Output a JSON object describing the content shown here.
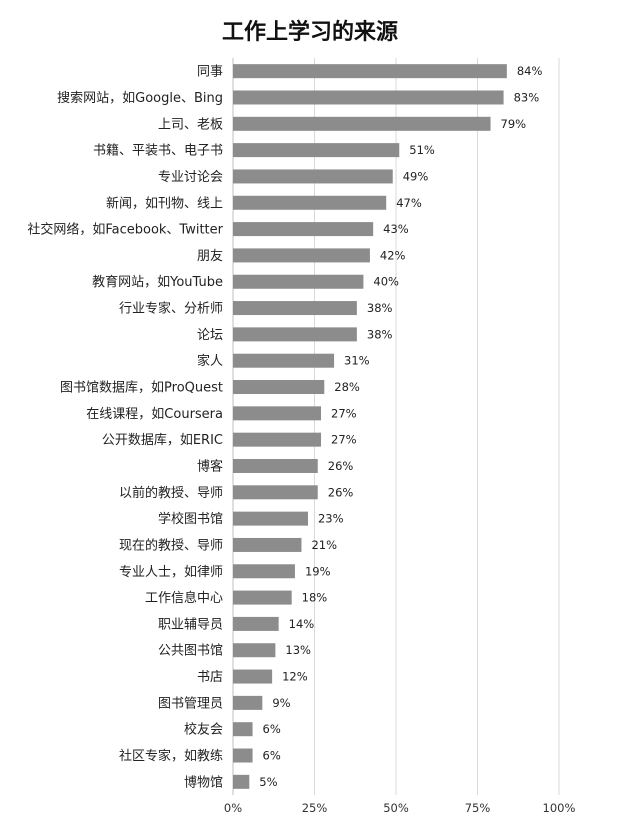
{
  "title": "工作上学习的来源",
  "chart_data": {
    "type": "bar",
    "orientation": "horizontal",
    "title": "工作上学习的来源",
    "value_suffix": "%",
    "xlim": [
      0,
      100
    ],
    "x_ticks": [
      0,
      25,
      50,
      75,
      100
    ],
    "x_tick_labels": [
      "0%",
      "25%",
      "50%",
      "75%",
      "100%"
    ],
    "grid": true,
    "bar_color": "#8c8c8c",
    "categories": [
      "同事",
      "搜索网站，如Google、Bing",
      "上司、老板",
      "书籍、平装书、电子书",
      "专业讨论会",
      "新闻，如刊物、线上",
      "社交网络，如Facebook、Twitter",
      "朋友",
      "教育网站，如YouTube",
      "行业专家、分析师",
      "论坛",
      "家人",
      "图书馆数据库，如ProQuest",
      "在线课程，如Coursera",
      "公开数据库，如ERIC",
      "博客",
      "以前的教授、导师",
      "学校图书馆",
      "现在的教授、导师",
      "专业人士，如律师",
      "工作信息中心",
      "职业辅导员",
      "公共图书馆",
      "书店",
      "图书管理员",
      "校友会",
      "社区专家，如教练",
      "博物馆"
    ],
    "values": [
      84,
      83,
      79,
      51,
      49,
      47,
      43,
      42,
      40,
      38,
      38,
      31,
      28,
      27,
      27,
      26,
      26,
      23,
      21,
      19,
      18,
      14,
      13,
      12,
      9,
      6,
      6,
      5
    ]
  }
}
